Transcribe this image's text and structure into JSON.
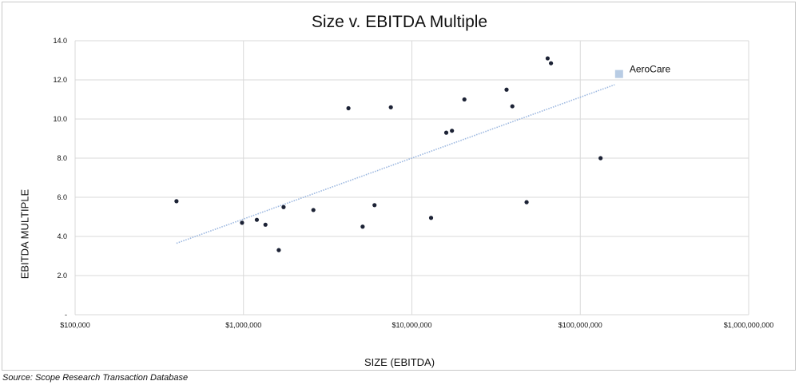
{
  "chart_data": {
    "type": "scatter",
    "title": "Size v. EBITDA Multiple",
    "xlabel": "SIZE (EBITDA)",
    "ylabel": "EBITDA MULTIPLE",
    "x_scale": "log",
    "xlim": [
      100000,
      1000000000
    ],
    "ylim": [
      0,
      14
    ],
    "x_ticks": [
      100000,
      1000000,
      10000000,
      100000000,
      1000000000
    ],
    "x_tick_labels": [
      "$100,000",
      "$1,000,000",
      "$10,000,000",
      "$100,000,000",
      "$1,000,000,000"
    ],
    "y_ticks": [
      0,
      2,
      4,
      6,
      8,
      10,
      12,
      14
    ],
    "y_tick_labels": [
      "-",
      "2.0",
      "4.0",
      "6.0",
      "8.0",
      "10.0",
      "12.0",
      "14.0"
    ],
    "grid": true,
    "series": [
      {
        "color": "#1c2235",
        "marker": "circle",
        "points": [
          [
            400000,
            5.8
          ],
          [
            980000,
            4.7
          ],
          [
            1200000,
            4.85
          ],
          [
            1350000,
            4.6
          ],
          [
            1620000,
            3.3
          ],
          [
            1730000,
            5.5
          ],
          [
            2600000,
            5.35
          ],
          [
            4200000,
            10.55
          ],
          [
            5100000,
            4.5
          ],
          [
            6000000,
            5.6
          ],
          [
            7500000,
            10.6
          ],
          [
            13000000,
            4.95
          ],
          [
            16000000,
            9.3
          ],
          [
            17300000,
            9.4
          ],
          [
            20500000,
            11.0
          ],
          [
            36500000,
            11.5
          ],
          [
            39500000,
            10.65
          ],
          [
            48000000,
            5.75
          ],
          [
            64000000,
            13.1
          ],
          [
            67000000,
            12.85
          ],
          [
            132000000,
            8.0
          ]
        ]
      },
      {
        "color": "#b8cce4",
        "marker": "square",
        "points": [
          [
            170000000,
            12.3
          ]
        ]
      }
    ],
    "trendline": {
      "type": "logarithmic",
      "color": "#9bb7e0",
      "style": "dotted",
      "from": [
        400000,
        3.65
      ],
      "to": [
        160000000,
        11.75
      ]
    },
    "annotations": [
      {
        "text": "AeroCare",
        "x": 170000000,
        "y": 12.3
      }
    ]
  },
  "source": "Source: Scope Research Transaction Database"
}
